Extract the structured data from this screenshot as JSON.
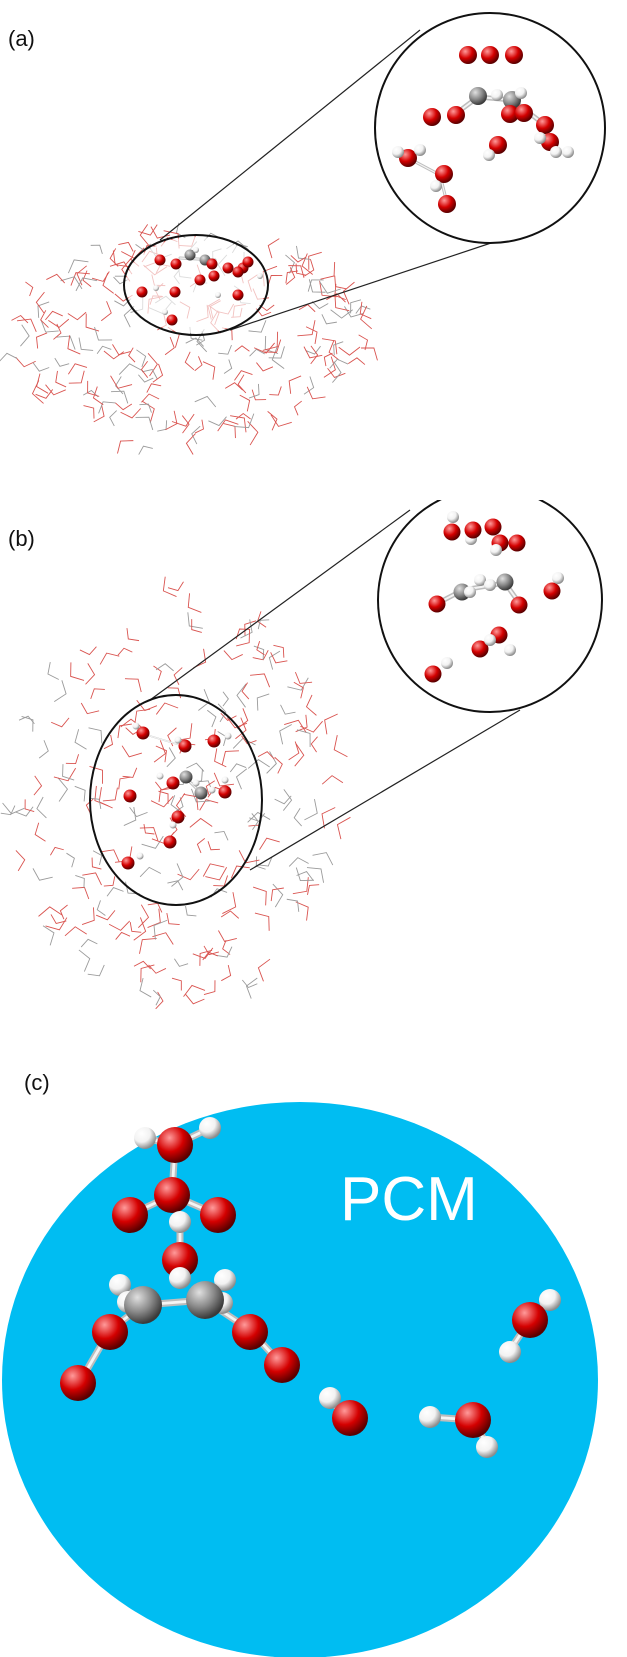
{
  "panels": [
    {
      "label": "(a)"
    },
    {
      "label": "(b)"
    },
    {
      "label": "(c)",
      "continuum_label": "PCM"
    }
  ],
  "colors": {
    "oxygen": "#d40000",
    "hydrogen": "#f2f2f2",
    "carbon": "#8a8a8a",
    "water_wire": "#d9534f",
    "pcm_background": "#00bdf2"
  },
  "icons": {
    "oxygen_atom": "red-sphere",
    "hydrogen_atom": "white-sphere",
    "carbon_atom": "grey-sphere"
  }
}
